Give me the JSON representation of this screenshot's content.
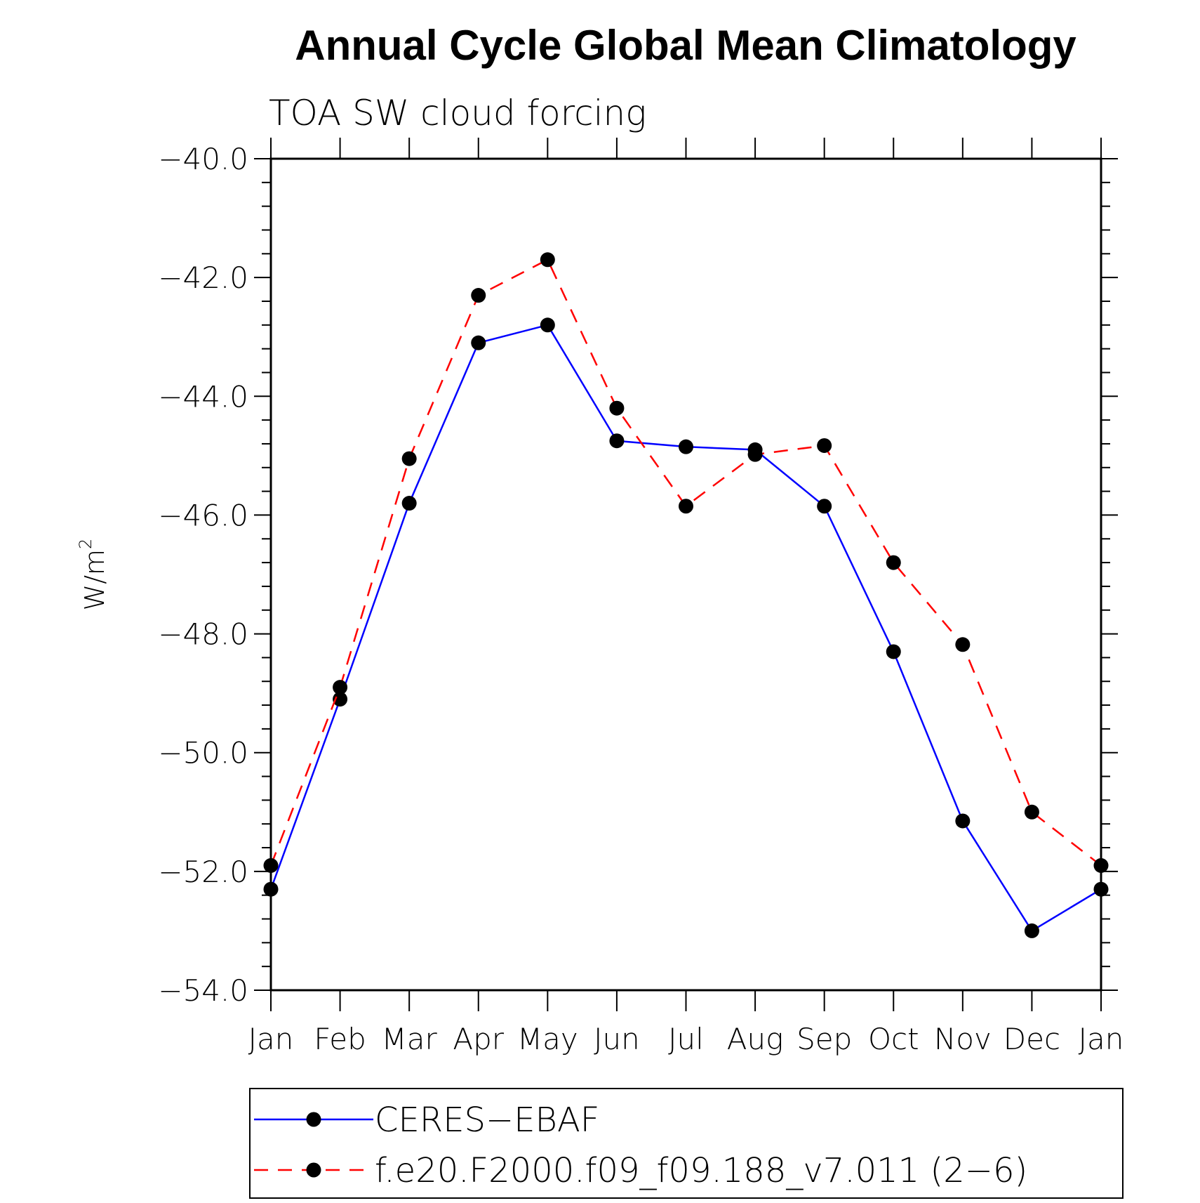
{
  "chart_data": {
    "type": "line",
    "title": "Annual Cycle Global Mean Climatology",
    "subtitle": "TOA SW cloud forcing",
    "ylabel_base": "W/m",
    "ylabel_sup": "2",
    "xlabel": "",
    "categories": [
      "Jan",
      "Feb",
      "Mar",
      "Apr",
      "May",
      "Jun",
      "Jul",
      "Aug",
      "Sep",
      "Oct",
      "Nov",
      "Dec",
      "Jan"
    ],
    "ylim": [
      -54.0,
      -40.0
    ],
    "yticks": [
      -40.0,
      -42.0,
      -44.0,
      -46.0,
      -48.0,
      -50.0,
      -52.0,
      -54.0
    ],
    "ytick_labels": [
      "−40.0",
      "−42.0",
      "−44.0",
      "−46.0",
      "−48.0",
      "−50.0",
      "−52.0",
      "−54.0"
    ],
    "series": [
      {
        "name": "CERES−EBAF",
        "color": "#0000ff",
        "dash": "solid",
        "values": [
          -52.3,
          -49.1,
          -45.8,
          -43.1,
          -42.8,
          -44.75,
          -44.85,
          -44.9,
          -45.85,
          -48.3,
          -51.15,
          -53.0,
          -52.3
        ]
      },
      {
        "name": "f.e20.F2000.f09_f09.188_v7.011 (2−6)",
        "color": "#ff0000",
        "dash": "dashed",
        "values": [
          -51.9,
          -48.9,
          -45.05,
          -42.3,
          -41.7,
          -44.2,
          -45.85,
          -44.98,
          -44.83,
          -46.8,
          -48.18,
          -51.0,
          -51.9
        ]
      }
    ],
    "legend_position": "bottom"
  }
}
